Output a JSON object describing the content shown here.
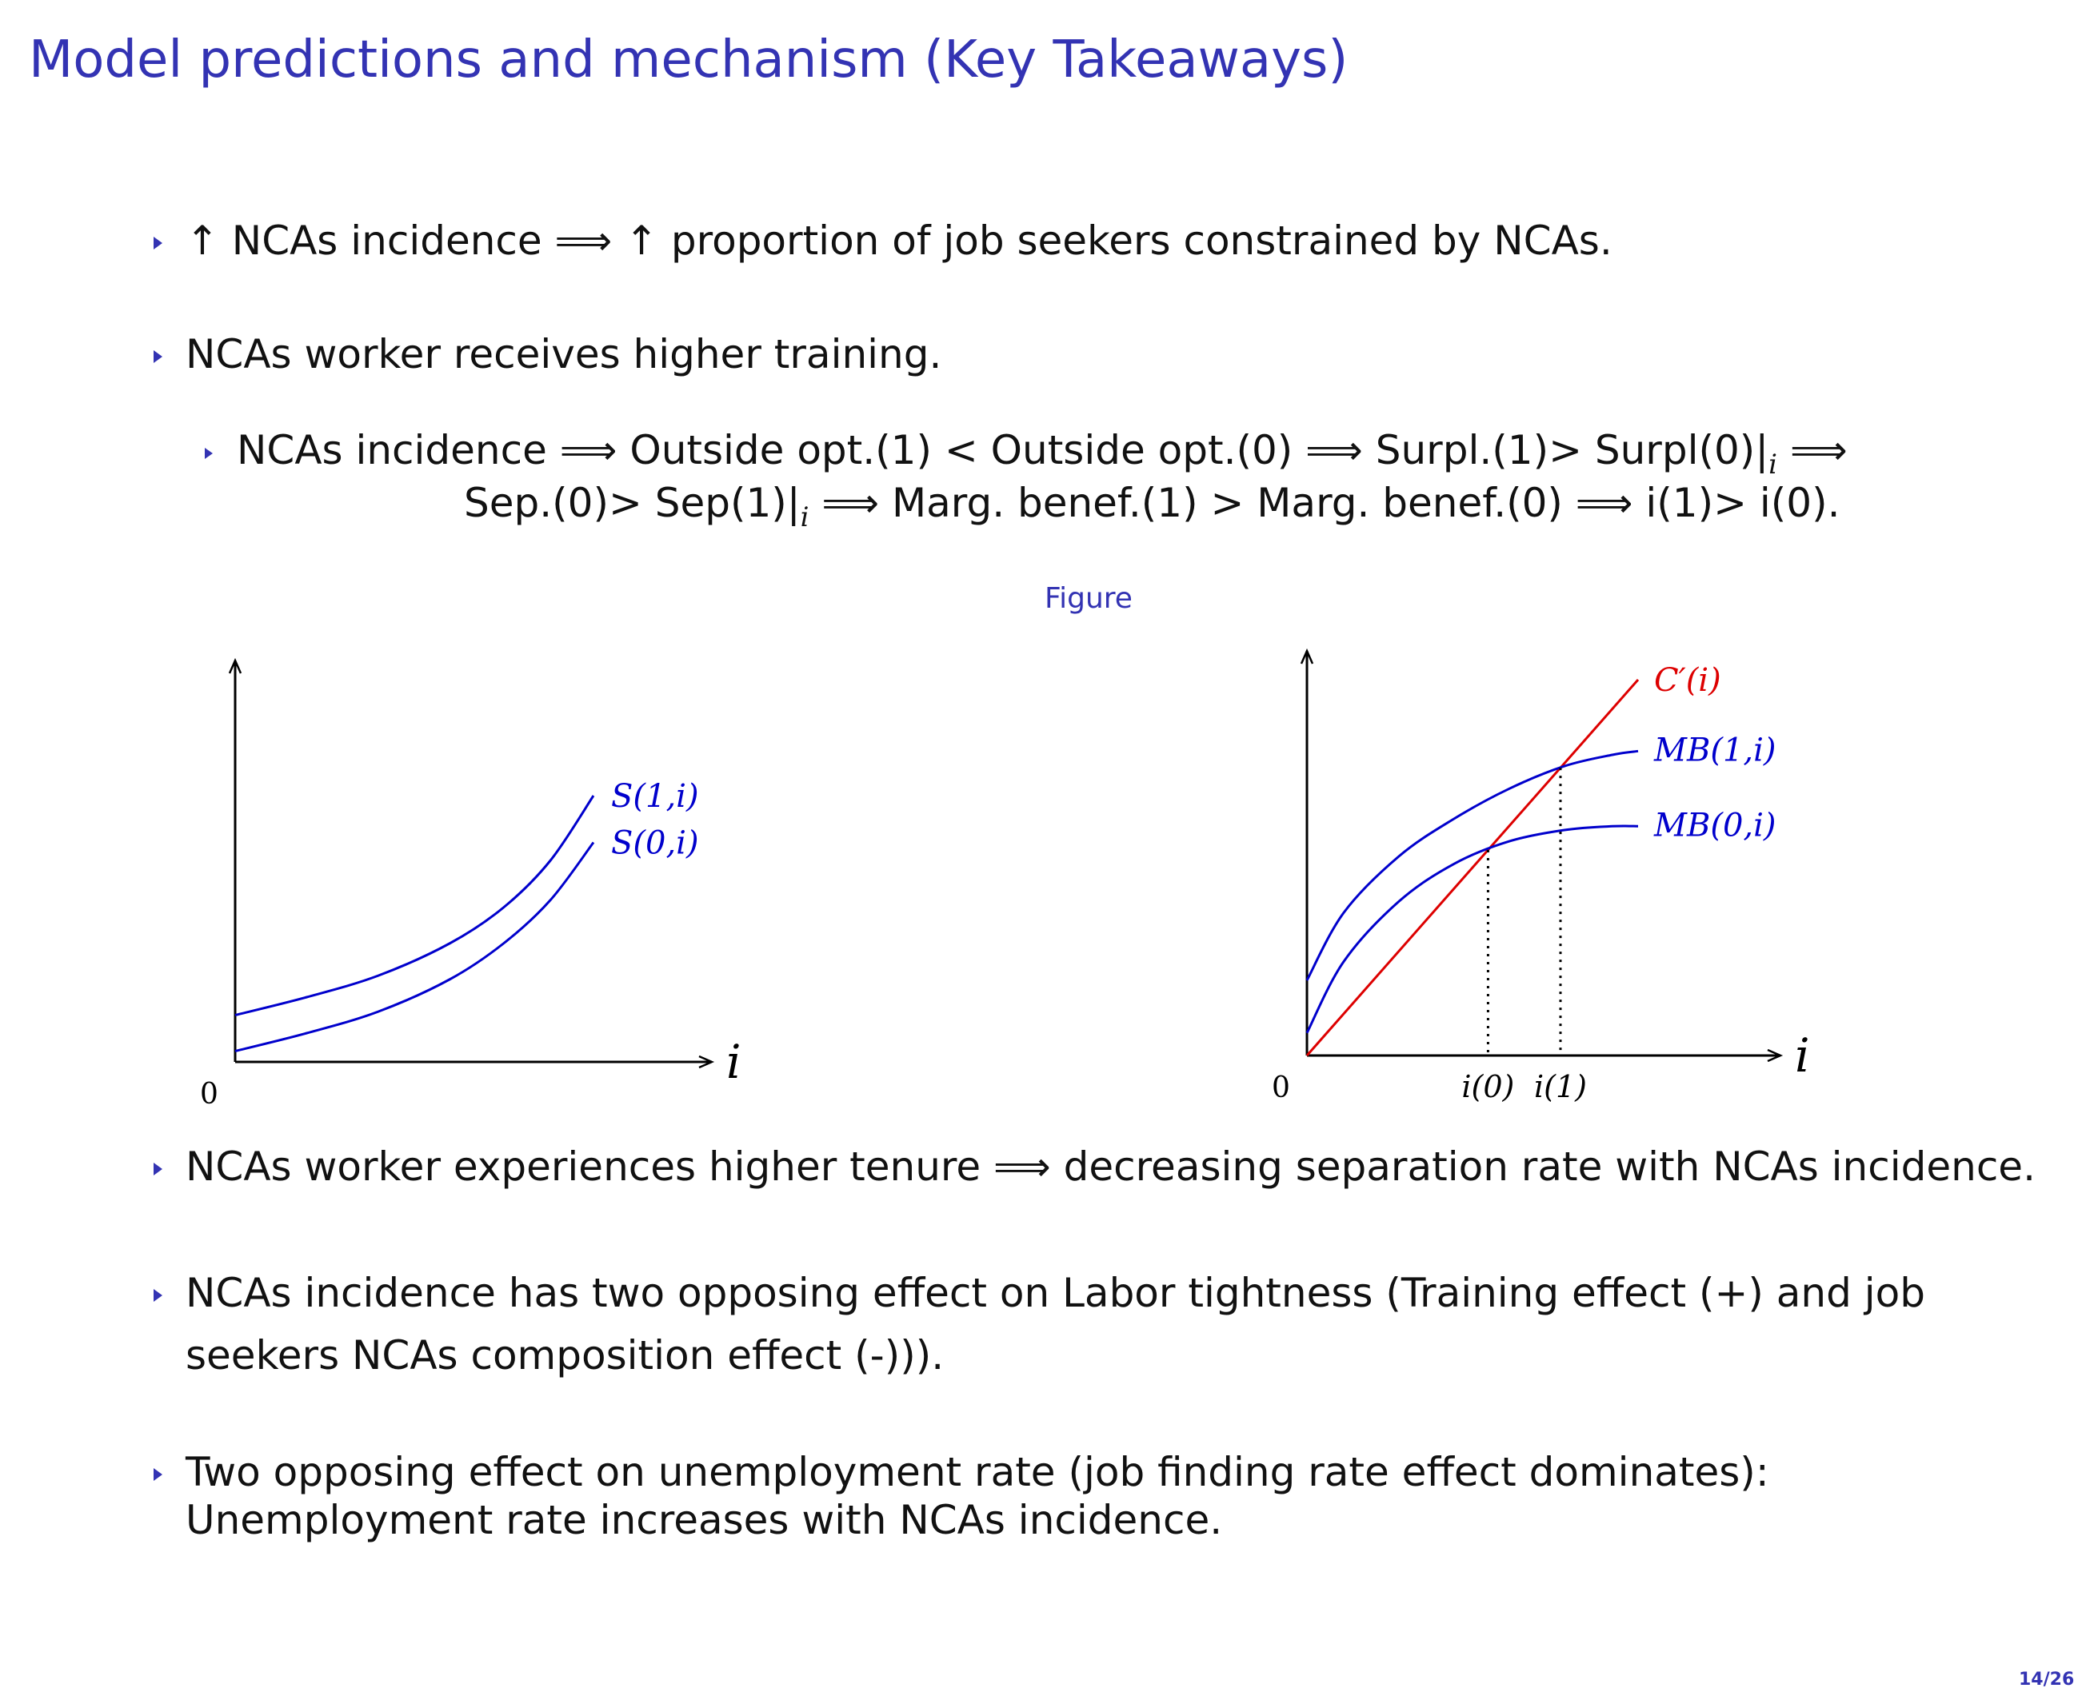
{
  "slide": {
    "title": "Model predictions and mechanism (Key Takeaways)",
    "bullets": [
      "↑ NCAs incidence ⟹ ↑ proportion of job seekers constrained by NCAs.",
      "NCAs worker receives higher training.",
      "NCAs worker experiences higher tenure ⟹ decreasing separation rate with NCAs incidence.",
      "NCAs incidence has two opposing effect on Labor tightness (Training effect (+) and job",
      "seekers NCAs composition effect (-))).",
      "Two opposing effect on unemployment rate (job finding rate effect dominates):",
      "Unemployment rate increases with NCAs incidence."
    ],
    "sub_bullet": {
      "line1_text": "NCAs incidence ⟹ Outside opt.(1) < Outside opt.(0) ⟹ Surpl.(1)> Surpl(0)|",
      "line1_sub": "i",
      "line1_tail": " ⟹",
      "line2_text": "Sep.(0)> Sep(1)|",
      "line2_sub": "i",
      "line2_tail": " ⟹ Marg. benef.(1) > Marg. benef.(0) ⟹ i(1)> i(0)."
    },
    "figure_caption": "Figure",
    "page_number": "14/26"
  },
  "chart_data": [
    {
      "type": "line",
      "x_axis_label": "i",
      "origin_label": "0",
      "series": [
        {
          "name": "S(1,i)",
          "color": "#0000cc",
          "x": [
            0,
            0.2,
            0.4,
            0.6,
            0.75,
            0.88,
            1.0
          ],
          "y": [
            0.13,
            0.18,
            0.24,
            0.33,
            0.43,
            0.56,
            0.74
          ]
        },
        {
          "name": "S(0,i)",
          "color": "#0000cc",
          "x": [
            0,
            0.2,
            0.4,
            0.6,
            0.75,
            0.88,
            1.0
          ],
          "y": [
            0.03,
            0.08,
            0.14,
            0.23,
            0.33,
            0.45,
            0.61
          ]
        }
      ]
    },
    {
      "type": "line",
      "x_axis_label": "i",
      "origin_label": "0",
      "x_tick_labels": [
        "i(0)",
        "i(1)"
      ],
      "series": [
        {
          "name": "C′(i)",
          "color": "#dd0000",
          "x": [
            0,
            0.9
          ],
          "y": [
            0,
            1.0
          ]
        },
        {
          "name": "MB(1,i)",
          "color": "#0000cc",
          "x": [
            0,
            0.1,
            0.25,
            0.4,
            0.55,
            0.7,
            0.83,
            0.9
          ],
          "y": [
            0.2,
            0.38,
            0.53,
            0.63,
            0.71,
            0.77,
            0.8,
            0.81
          ]
        },
        {
          "name": "MB(0,i)",
          "color": "#0000cc",
          "x": [
            0,
            0.1,
            0.25,
            0.4,
            0.55,
            0.7,
            0.83,
            0.9
          ],
          "y": [
            0.06,
            0.25,
            0.41,
            0.51,
            0.57,
            0.6,
            0.61,
            0.61
          ]
        }
      ]
    }
  ]
}
